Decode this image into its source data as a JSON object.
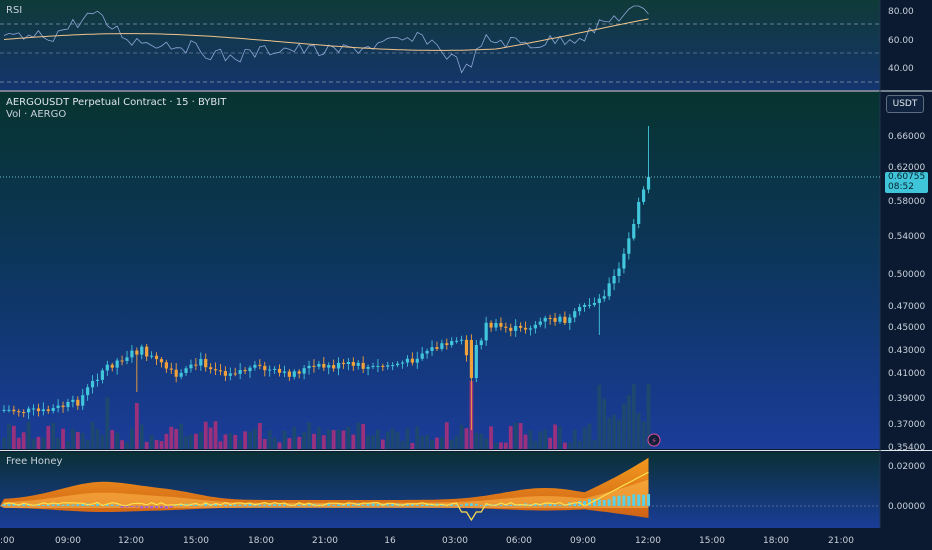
{
  "rsi_panel": {
    "title": "RSI",
    "ticks": [
      "80.00",
      "60.00",
      "40.00"
    ]
  },
  "main_panel": {
    "symbol_title": "AERGOUSDT Perpetual Contract · 15 · BYBIT",
    "volume_label": "Vol · AERGO",
    "currency_button": "USDT",
    "price_ticks": [
      "0.66000",
      "0.62000",
      "0.58000",
      "0.54000",
      "0.50000",
      "0.47000",
      "0.45000",
      "0.43000",
      "0.41000",
      "0.39000",
      "0.37000",
      "0.35400"
    ],
    "last_price": "0.60755",
    "countdown": "08:52"
  },
  "honey_panel": {
    "title": "Free Honey",
    "ticks": [
      "0.02000",
      "0.00000"
    ]
  },
  "time_axis": {
    "labels": [
      ":00",
      "09:00",
      "12:00",
      "15:00",
      "18:00",
      "21:00",
      "16",
      "03:00",
      "06:00",
      "09:00",
      "12:00",
      "15:00",
      "18:00",
      "21:00"
    ]
  },
  "colors": {
    "bull": "#42c6dc",
    "bear": "#f2a23a",
    "vol_bull": "#1e4a6e",
    "vol_bear": "#a0307a",
    "price_tag": "#3fc4d9"
  }
}
